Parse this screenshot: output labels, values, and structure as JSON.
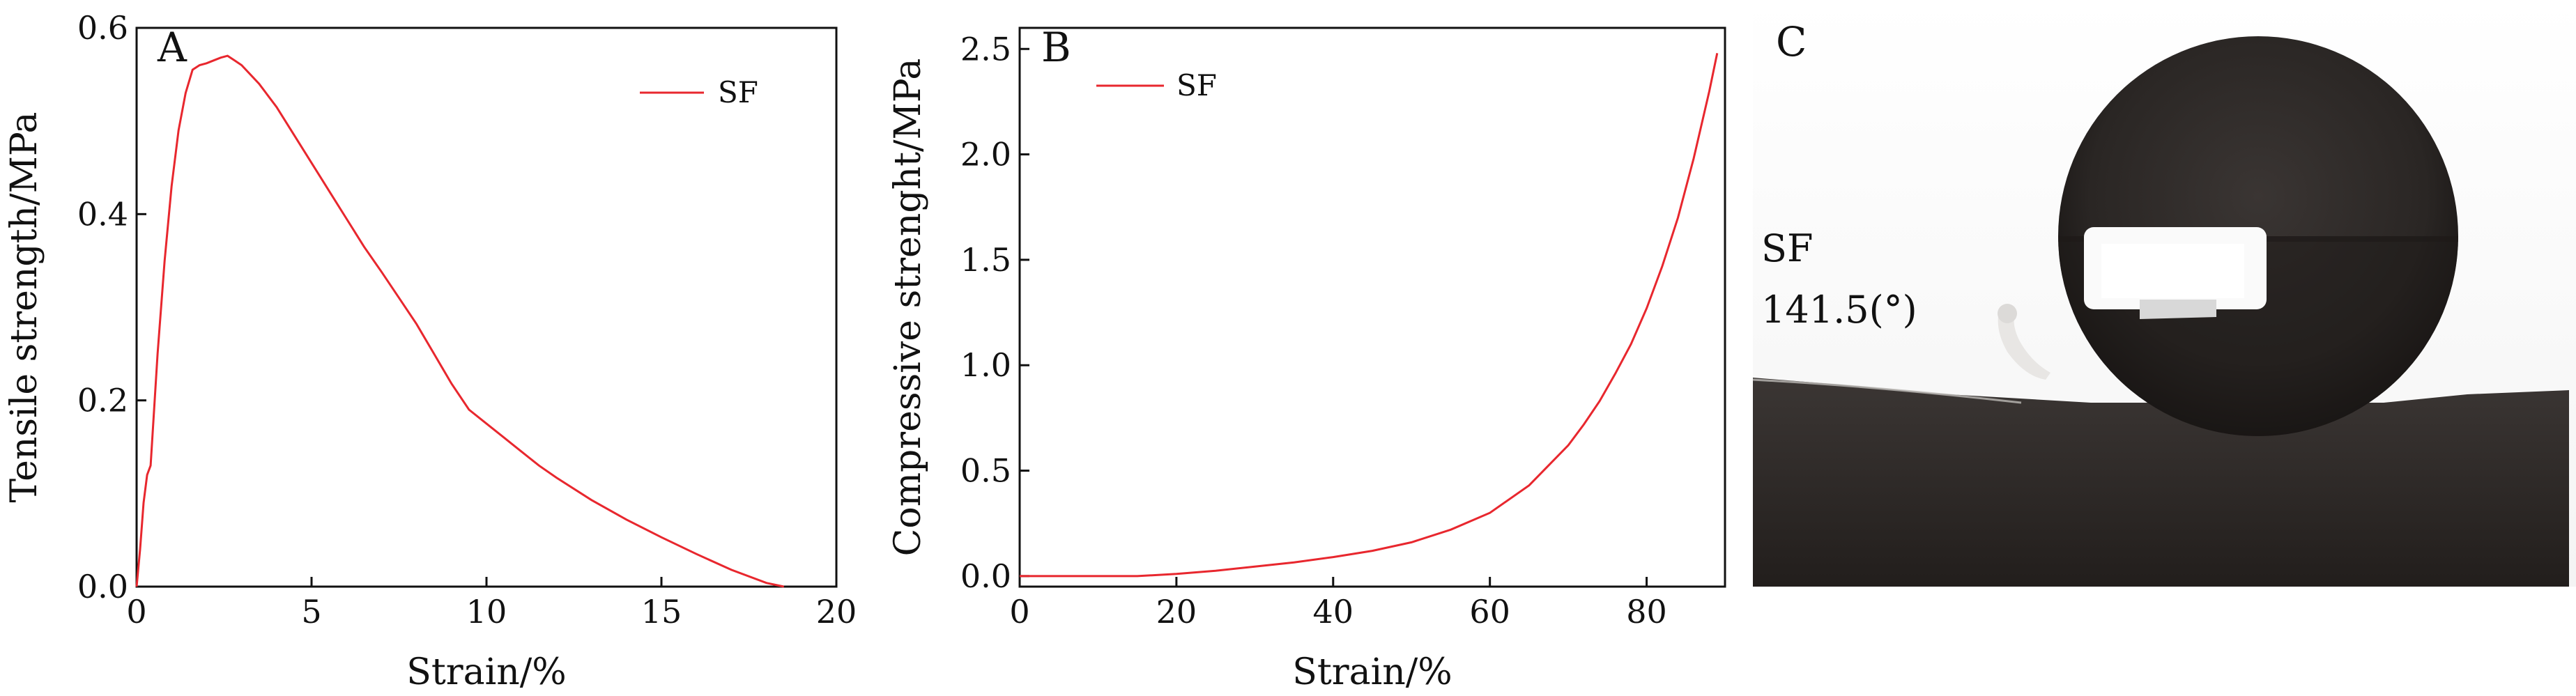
{
  "chart_data": [
    {
      "type": "line",
      "panel_label": "A",
      "xlabel": "Strain/%",
      "ylabel": "Tensile strength/MPa",
      "xlim": [
        0,
        20
      ],
      "ylim": [
        0,
        0.6
      ],
      "xticks": [
        "0",
        "5",
        "10",
        "15",
        "20"
      ],
      "yticks": [
        "0.0",
        "0.2",
        "0.4",
        "0.6"
      ],
      "legend_position": "top-right",
      "grid": false,
      "series": [
        {
          "name": "SF",
          "color": "#e8272e",
          "x": [
            0,
            0.1,
            0.2,
            0.3,
            0.4,
            0.5,
            0.6,
            0.8,
            1.0,
            1.2,
            1.4,
            1.6,
            1.8,
            2.0,
            2.2,
            2.4,
            2.6,
            2.8,
            3.0,
            3.5,
            4.0,
            4.5,
            5.0,
            5.5,
            6.0,
            6.5,
            7.0,
            7.5,
            8.0,
            8.5,
            9.0,
            9.5,
            10.0,
            10.5,
            11.0,
            11.5,
            12.0,
            13.0,
            14.0,
            15.0,
            16.0,
            17.0,
            18.0,
            18.5
          ],
          "y": [
            0.0,
            0.04,
            0.09,
            0.12,
            0.13,
            0.19,
            0.25,
            0.35,
            0.43,
            0.49,
            0.53,
            0.555,
            0.56,
            0.562,
            0.565,
            0.568,
            0.57,
            0.565,
            0.56,
            0.54,
            0.515,
            0.485,
            0.455,
            0.425,
            0.395,
            0.365,
            0.338,
            0.31,
            0.282,
            0.25,
            0.218,
            0.19,
            0.175,
            0.16,
            0.145,
            0.13,
            0.117,
            0.093,
            0.072,
            0.053,
            0.035,
            0.018,
            0.004,
            0.0
          ]
        }
      ]
    },
    {
      "type": "line",
      "panel_label": "B",
      "xlabel": "Strain/%",
      "ylabel": "Compressive strenght/MPa",
      "xlim": [
        0,
        90
      ],
      "ylim": [
        -0.05,
        2.6
      ],
      "xticks": [
        "0",
        "20",
        "40",
        "60",
        "80"
      ],
      "yticks": [
        "0.0",
        "0.5",
        "1.0",
        "1.5",
        "2.0",
        "2.5"
      ],
      "legend_position": "top-left",
      "grid": false,
      "series": [
        {
          "name": "SF",
          "color": "#e8272e",
          "x": [
            0,
            10,
            15,
            20,
            25,
            30,
            35,
            40,
            45,
            50,
            55,
            60,
            65,
            70,
            72,
            74,
            76,
            78,
            80,
            82,
            84,
            86,
            88,
            89
          ],
          "y": [
            0.0,
            0.0,
            0.0,
            0.01,
            0.025,
            0.045,
            0.065,
            0.09,
            0.12,
            0.16,
            0.22,
            0.3,
            0.43,
            0.62,
            0.72,
            0.83,
            0.96,
            1.1,
            1.27,
            1.47,
            1.7,
            1.98,
            2.3,
            2.48
          ]
        }
      ]
    }
  ],
  "photo": {
    "panel_label": "C",
    "sample_label": "SF",
    "angle_label": "141.5(°)"
  }
}
